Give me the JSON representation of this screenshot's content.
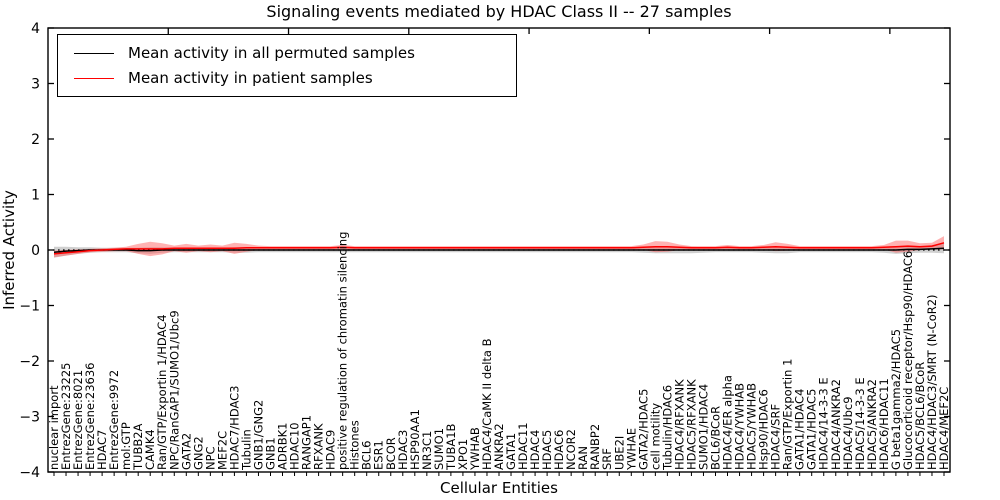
{
  "figure_title": "Signaling events mediated by HDAC Class II -- 27 samples",
  "chart_data": {
    "type": "line",
    "title": "Signaling events mediated by HDAC Class II -- 27 samples",
    "xlabel": "Cellular Entities",
    "ylabel": "Inferred Activity",
    "ylim": [
      -4,
      4
    ],
    "yticks": [
      -4,
      -3,
      -2,
      -1,
      0,
      1,
      2,
      3,
      4
    ],
    "grid": false,
    "zero_line": "dotted",
    "legend_position": "upper left",
    "categories": [
      "nuclear import",
      "EntrezGene:23225",
      "EntrezGene:8021",
      "EntrezGene:23636",
      "HDAC7",
      "EntrezGene:9972",
      "mol:GTP",
      "TUBB2A",
      "CAMK4",
      "Ran/GTP/Exportin 1/HDAC4",
      "NPC/RanGAP1/SUMO1/Ubc9",
      "GATA2",
      "GNG2",
      "NPC",
      "MEF2C",
      "HDAC7/HDAC3",
      "Tubulin",
      "GNB1/GNG2",
      "GNB1",
      "ADRBK1",
      "HDAC10",
      "RANGAP1",
      "RFXANK",
      "HDAC9",
      "positive regulation of chromatin silencing",
      "Histones",
      "BCL6",
      "ESR1",
      "BCOR",
      "HDAC3",
      "HSP90AA1",
      "NR3C1",
      "SUMO1",
      "TUBA1B",
      "XPO1",
      "YWHAB",
      "HDAC4/CaMK II delta B",
      "ANKRA2",
      "GATA1",
      "HDAC11",
      "HDAC4",
      "HDAC5",
      "HDAC6",
      "NCOR2",
      "RAN",
      "RANBP2",
      "SRF",
      "UBE2I",
      "YWHAE",
      "GATA2/HDAC5",
      "cell motility",
      "Tubulin/HDAC6",
      "HDAC4/RFXANK",
      "HDAC5/RFXANK",
      "SUMO1/HDAC4",
      "BCL6/BCoR",
      "HDAC4/ER alpha",
      "HDAC4/YWHAB",
      "HDAC5/YWHAB",
      "Hsp90/HDAC6",
      "HDAC4/SRF",
      "Ran/GTP/Exportin 1",
      "GATA1/HDAC4",
      "GATA1/HDAC5",
      "HDAC4/14-3-3 E",
      "HDAC4/ANKRA2",
      "HDAC4/Ubc9",
      "HDAC5/14-3-3 E",
      "HDAC5/ANKRA2",
      "HDAC6/HDAC11",
      "G beta1gamma2/HDAC5",
      "Glucocorticoid receptor/Hsp90/HDAC6",
      "HDAC5/BCL6/BCoR",
      "HDAC4/HDAC3/SMRT (N-CoR2)",
      "HDAC4/MEF2C"
    ],
    "series": [
      {
        "name": "Mean activity in all permuted samples",
        "color": "#000000",
        "band_color": "#aaaaaa",
        "band_opacity": 0.55,
        "values": [
          -0.04,
          -0.02,
          -0.01,
          0.0,
          0.0,
          0.0,
          0.0,
          -0.01,
          -0.01,
          0.0,
          0.0,
          0.0,
          0.0,
          0.0,
          0.0,
          0.0,
          0.0,
          0.0,
          0.0,
          0.0,
          0.0,
          0.0,
          0.0,
          0.0,
          0.0,
          0.0,
          0.0,
          0.0,
          0.0,
          0.0,
          0.0,
          0.0,
          0.0,
          0.0,
          0.0,
          0.0,
          0.0,
          0.0,
          0.0,
          0.0,
          0.0,
          0.0,
          0.0,
          0.0,
          0.0,
          0.0,
          0.0,
          0.0,
          0.0,
          0.0,
          0.0,
          0.0,
          0.0,
          0.0,
          0.0,
          0.0,
          0.0,
          0.0,
          0.0,
          0.0,
          0.0,
          0.0,
          0.0,
          0.0,
          0.0,
          0.0,
          0.0,
          0.0,
          0.0,
          0.0,
          0.0,
          0.01,
          0.01,
          0.02,
          0.03
        ],
        "std": [
          0.1,
          0.08,
          0.06,
          0.05,
          0.04,
          0.04,
          0.04,
          0.05,
          0.06,
          0.05,
          0.04,
          0.04,
          0.04,
          0.04,
          0.04,
          0.05,
          0.05,
          0.04,
          0.04,
          0.04,
          0.04,
          0.04,
          0.04,
          0.04,
          0.04,
          0.04,
          0.04,
          0.04,
          0.04,
          0.04,
          0.04,
          0.04,
          0.04,
          0.04,
          0.04,
          0.04,
          0.04,
          0.04,
          0.04,
          0.04,
          0.04,
          0.04,
          0.04,
          0.04,
          0.04,
          0.04,
          0.04,
          0.04,
          0.04,
          0.05,
          0.06,
          0.06,
          0.06,
          0.06,
          0.05,
          0.04,
          0.04,
          0.04,
          0.04,
          0.05,
          0.06,
          0.06,
          0.04,
          0.04,
          0.04,
          0.04,
          0.04,
          0.04,
          0.04,
          0.05,
          0.07,
          0.07,
          0.06,
          0.07,
          0.09
        ]
      },
      {
        "name": "Mean activity in patient samples",
        "color": "#ff0000",
        "band_color": "#ff5555",
        "band_opacity": 0.45,
        "values": [
          -0.07,
          -0.05,
          -0.03,
          -0.01,
          0.0,
          0.01,
          0.02,
          0.02,
          0.02,
          0.02,
          0.03,
          0.03,
          0.03,
          0.03,
          0.03,
          0.03,
          0.04,
          0.04,
          0.04,
          0.04,
          0.04,
          0.04,
          0.04,
          0.04,
          0.05,
          0.04,
          0.04,
          0.04,
          0.04,
          0.04,
          0.04,
          0.04,
          0.04,
          0.04,
          0.04,
          0.04,
          0.04,
          0.04,
          0.04,
          0.04,
          0.04,
          0.04,
          0.04,
          0.04,
          0.04,
          0.04,
          0.04,
          0.04,
          0.04,
          0.05,
          0.06,
          0.06,
          0.05,
          0.04,
          0.04,
          0.04,
          0.05,
          0.04,
          0.04,
          0.05,
          0.06,
          0.05,
          0.04,
          0.04,
          0.04,
          0.04,
          0.04,
          0.04,
          0.04,
          0.05,
          0.06,
          0.07,
          0.06,
          0.07,
          0.13
        ],
        "std": [
          0.06,
          0.05,
          0.04,
          0.03,
          0.03,
          0.03,
          0.04,
          0.09,
          0.13,
          0.1,
          0.05,
          0.08,
          0.05,
          0.07,
          0.05,
          0.1,
          0.07,
          0.04,
          0.03,
          0.03,
          0.03,
          0.03,
          0.03,
          0.03,
          0.04,
          0.03,
          0.03,
          0.03,
          0.03,
          0.03,
          0.03,
          0.03,
          0.03,
          0.03,
          0.03,
          0.03,
          0.03,
          0.03,
          0.03,
          0.03,
          0.03,
          0.03,
          0.03,
          0.03,
          0.03,
          0.03,
          0.03,
          0.03,
          0.03,
          0.05,
          0.1,
          0.09,
          0.05,
          0.03,
          0.03,
          0.03,
          0.04,
          0.03,
          0.03,
          0.04,
          0.08,
          0.06,
          0.03,
          0.03,
          0.03,
          0.03,
          0.03,
          0.03,
          0.03,
          0.04,
          0.11,
          0.1,
          0.06,
          0.06,
          0.12
        ]
      }
    ]
  }
}
